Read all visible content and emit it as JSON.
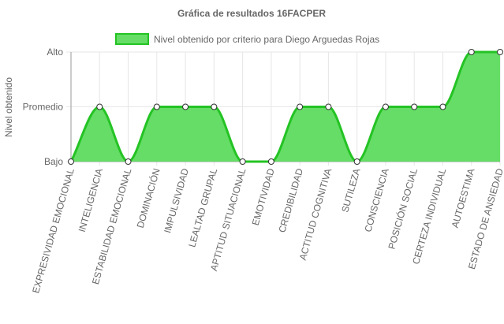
{
  "chart_data": {
    "type": "area",
    "title": "Gráfica de resultados 16FACPER",
    "ylabel": "Nivel obtenido",
    "xlabel": "",
    "y_levels": [
      "Bajo",
      "Promedio",
      "Alto"
    ],
    "ylim": [
      0,
      2
    ],
    "legend_position": "top",
    "grid": true,
    "categories": [
      "EXPRESIVIDAD EMOCIONAL",
      "INTELIGENCIA",
      "ESTABILIDAD EMOCIONAL",
      "DOMINACIÓN",
      "IMPULSIVIDAD",
      "LEALTAD GRUPAL",
      "APTITUD SITUACIONAL",
      "EMOTIVIDAD",
      "CREDIBILIDAD",
      "ACTITUD COGNITIVA",
      "SUTILEZA",
      "CONSCIENCIA",
      "POSICIÓN SOCIAL",
      "CERTEZA INDIVIDUAL",
      "AUTOESTIMA",
      "ESTADO DE ANSIEDAD"
    ],
    "series": [
      {
        "name": "Nivel obtenido por criterio para Diego Arguedas Rojas",
        "values": [
          0,
          1,
          0,
          1,
          1,
          1,
          0,
          0,
          1,
          1,
          0,
          1,
          1,
          1,
          2,
          2
        ],
        "color": "#24c324",
        "fill": "#66dd66"
      }
    ]
  }
}
